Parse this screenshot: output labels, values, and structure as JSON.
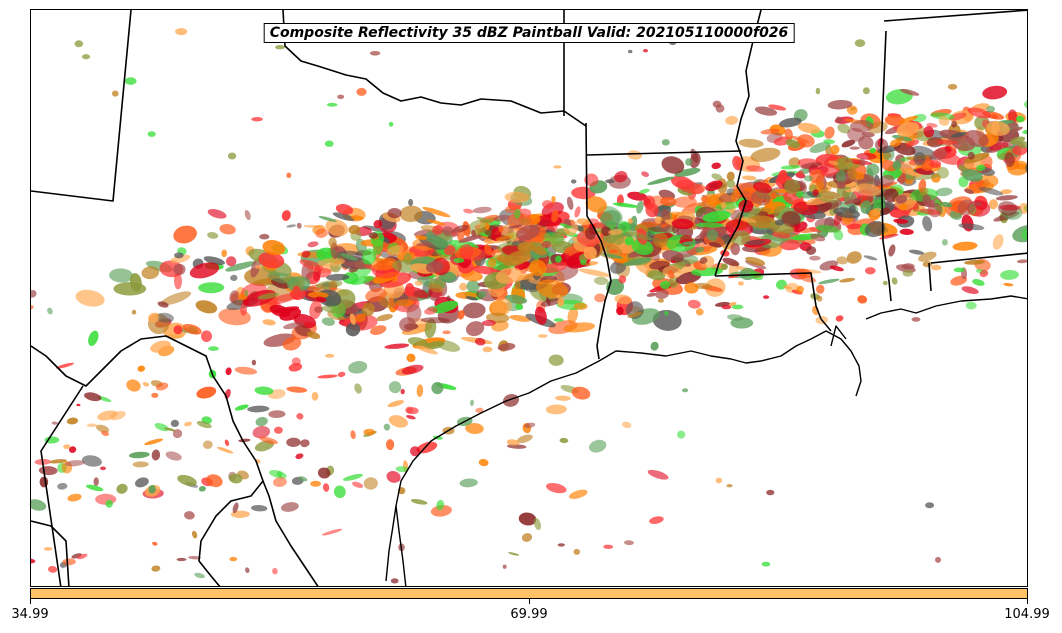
{
  "title": "Composite Reflectivity 35 dBZ Paintball Valid: 202105110000f026",
  "colorbar": {
    "color": "#ffc266",
    "tick_labels": [
      "34.99",
      "69.99",
      "104.99"
    ],
    "range": [
      34.99,
      104.99
    ]
  },
  "member_colors": [
    "#ff3333",
    "#e0001a",
    "#ff7f00",
    "#ff5a1a",
    "#ffa64d",
    "#33dd33",
    "#8c2a2a",
    "#555555",
    "#8a9a3a",
    "#5aa05a",
    "#c08020",
    "#a84c4c"
  ],
  "map": {
    "region": "US Gulf Coast (Texas, Louisiana, Mississippi, Alabama)",
    "lines": "state borders and coastline in black"
  }
}
